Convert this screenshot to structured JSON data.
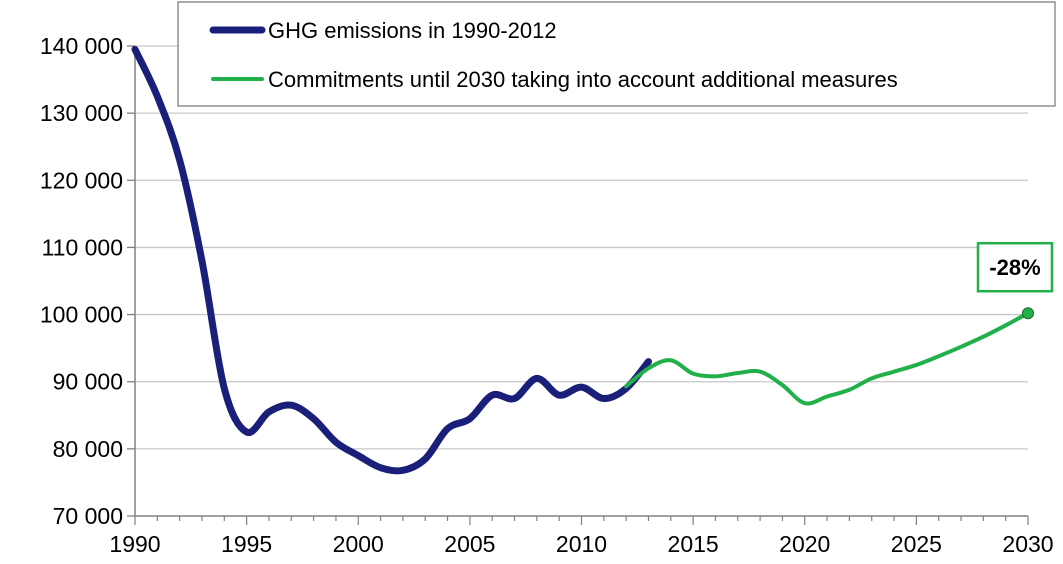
{
  "chart_data": {
    "type": "line",
    "title": "",
    "xlabel": "",
    "ylabel": "",
    "xlim": [
      1990,
      2030
    ],
    "ylim": [
      70000,
      140000
    ],
    "x_ticks": [
      1990,
      1995,
      2000,
      2005,
      2010,
      2015,
      2020,
      2025,
      2030
    ],
    "x_tick_labels": [
      "1990",
      "1995",
      "2000",
      "2005",
      "2010",
      "2015",
      "2020",
      "2025",
      "2030"
    ],
    "y_ticks": [
      70000,
      80000,
      90000,
      100000,
      110000,
      120000,
      130000,
      140000
    ],
    "y_tick_labels": [
      "70 000",
      "80 000",
      "90 000",
      "100 000",
      "110 000",
      "120 000",
      "130 000",
      "140 000"
    ],
    "grid": "horizontal",
    "legend": "top",
    "series": [
      {
        "name": "GHG emissions in 1990-2012",
        "color": "#1a1f7a",
        "x": [
          1990,
          1991,
          1992,
          1993,
          1994,
          1995,
          1996,
          1997,
          1998,
          1999,
          2000,
          2001,
          2002,
          2003,
          2004,
          2005,
          2006,
          2007,
          2008,
          2009,
          2010,
          2011,
          2012,
          2013
        ],
        "y": [
          139500,
          132500,
          123000,
          108000,
          89000,
          82500,
          85500,
          86500,
          84500,
          81000,
          79000,
          77200,
          76800,
          78500,
          83000,
          84500,
          88000,
          87500,
          90500,
          88000,
          89200,
          87500,
          89000,
          93000
        ]
      },
      {
        "name": "Commitments until 2030 taking into account additional measures",
        "color": "#22b04b",
        "x": [
          2012,
          2013,
          2014,
          2015,
          2016,
          2017,
          2018,
          2019,
          2020,
          2021,
          2022,
          2023,
          2024,
          2025,
          2026,
          2027,
          2028,
          2029,
          2030
        ],
        "y": [
          89300,
          92000,
          93200,
          91200,
          90800,
          91300,
          91500,
          89500,
          86800,
          87800,
          88800,
          90500,
          91500,
          92500,
          93800,
          95200,
          96700,
          98400,
          100200
        ]
      }
    ],
    "annotations": [
      {
        "text": "-28%",
        "x": 2030,
        "y": 100200,
        "color": "#22b04b"
      }
    ]
  }
}
